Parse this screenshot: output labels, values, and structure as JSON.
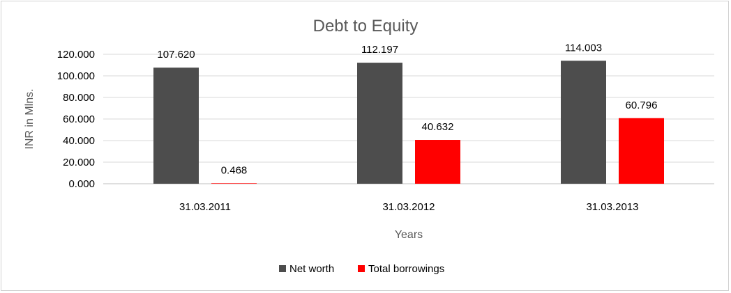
{
  "chart_data": {
    "type": "bar",
    "title": "Debt to Equity",
    "xlabel": "Years",
    "ylabel": "INR in Mlns.",
    "categories": [
      "31.03.2011",
      "31.03.2012",
      "31.03.2013"
    ],
    "series": [
      {
        "name": "Net worth",
        "values": [
          107.62,
          112.197,
          114.003
        ],
        "color": "#4d4d4d"
      },
      {
        "name": "Total borrowings",
        "values": [
          0.468,
          40.632,
          60.796
        ],
        "color": "#ff0000"
      }
    ],
    "data_labels": [
      [
        "107.620",
        "112.197",
        "114.003"
      ],
      [
        "0.468",
        "40.632",
        "60.796"
      ]
    ],
    "ylim": [
      0,
      120
    ],
    "yticks": [
      0,
      20,
      40,
      60,
      80,
      100,
      120
    ],
    "ytick_labels": [
      "0.000",
      "20.000",
      "40.000",
      "60.000",
      "80.000",
      "100.000",
      "120.000"
    ],
    "grid": true,
    "legend_position": "bottom"
  }
}
